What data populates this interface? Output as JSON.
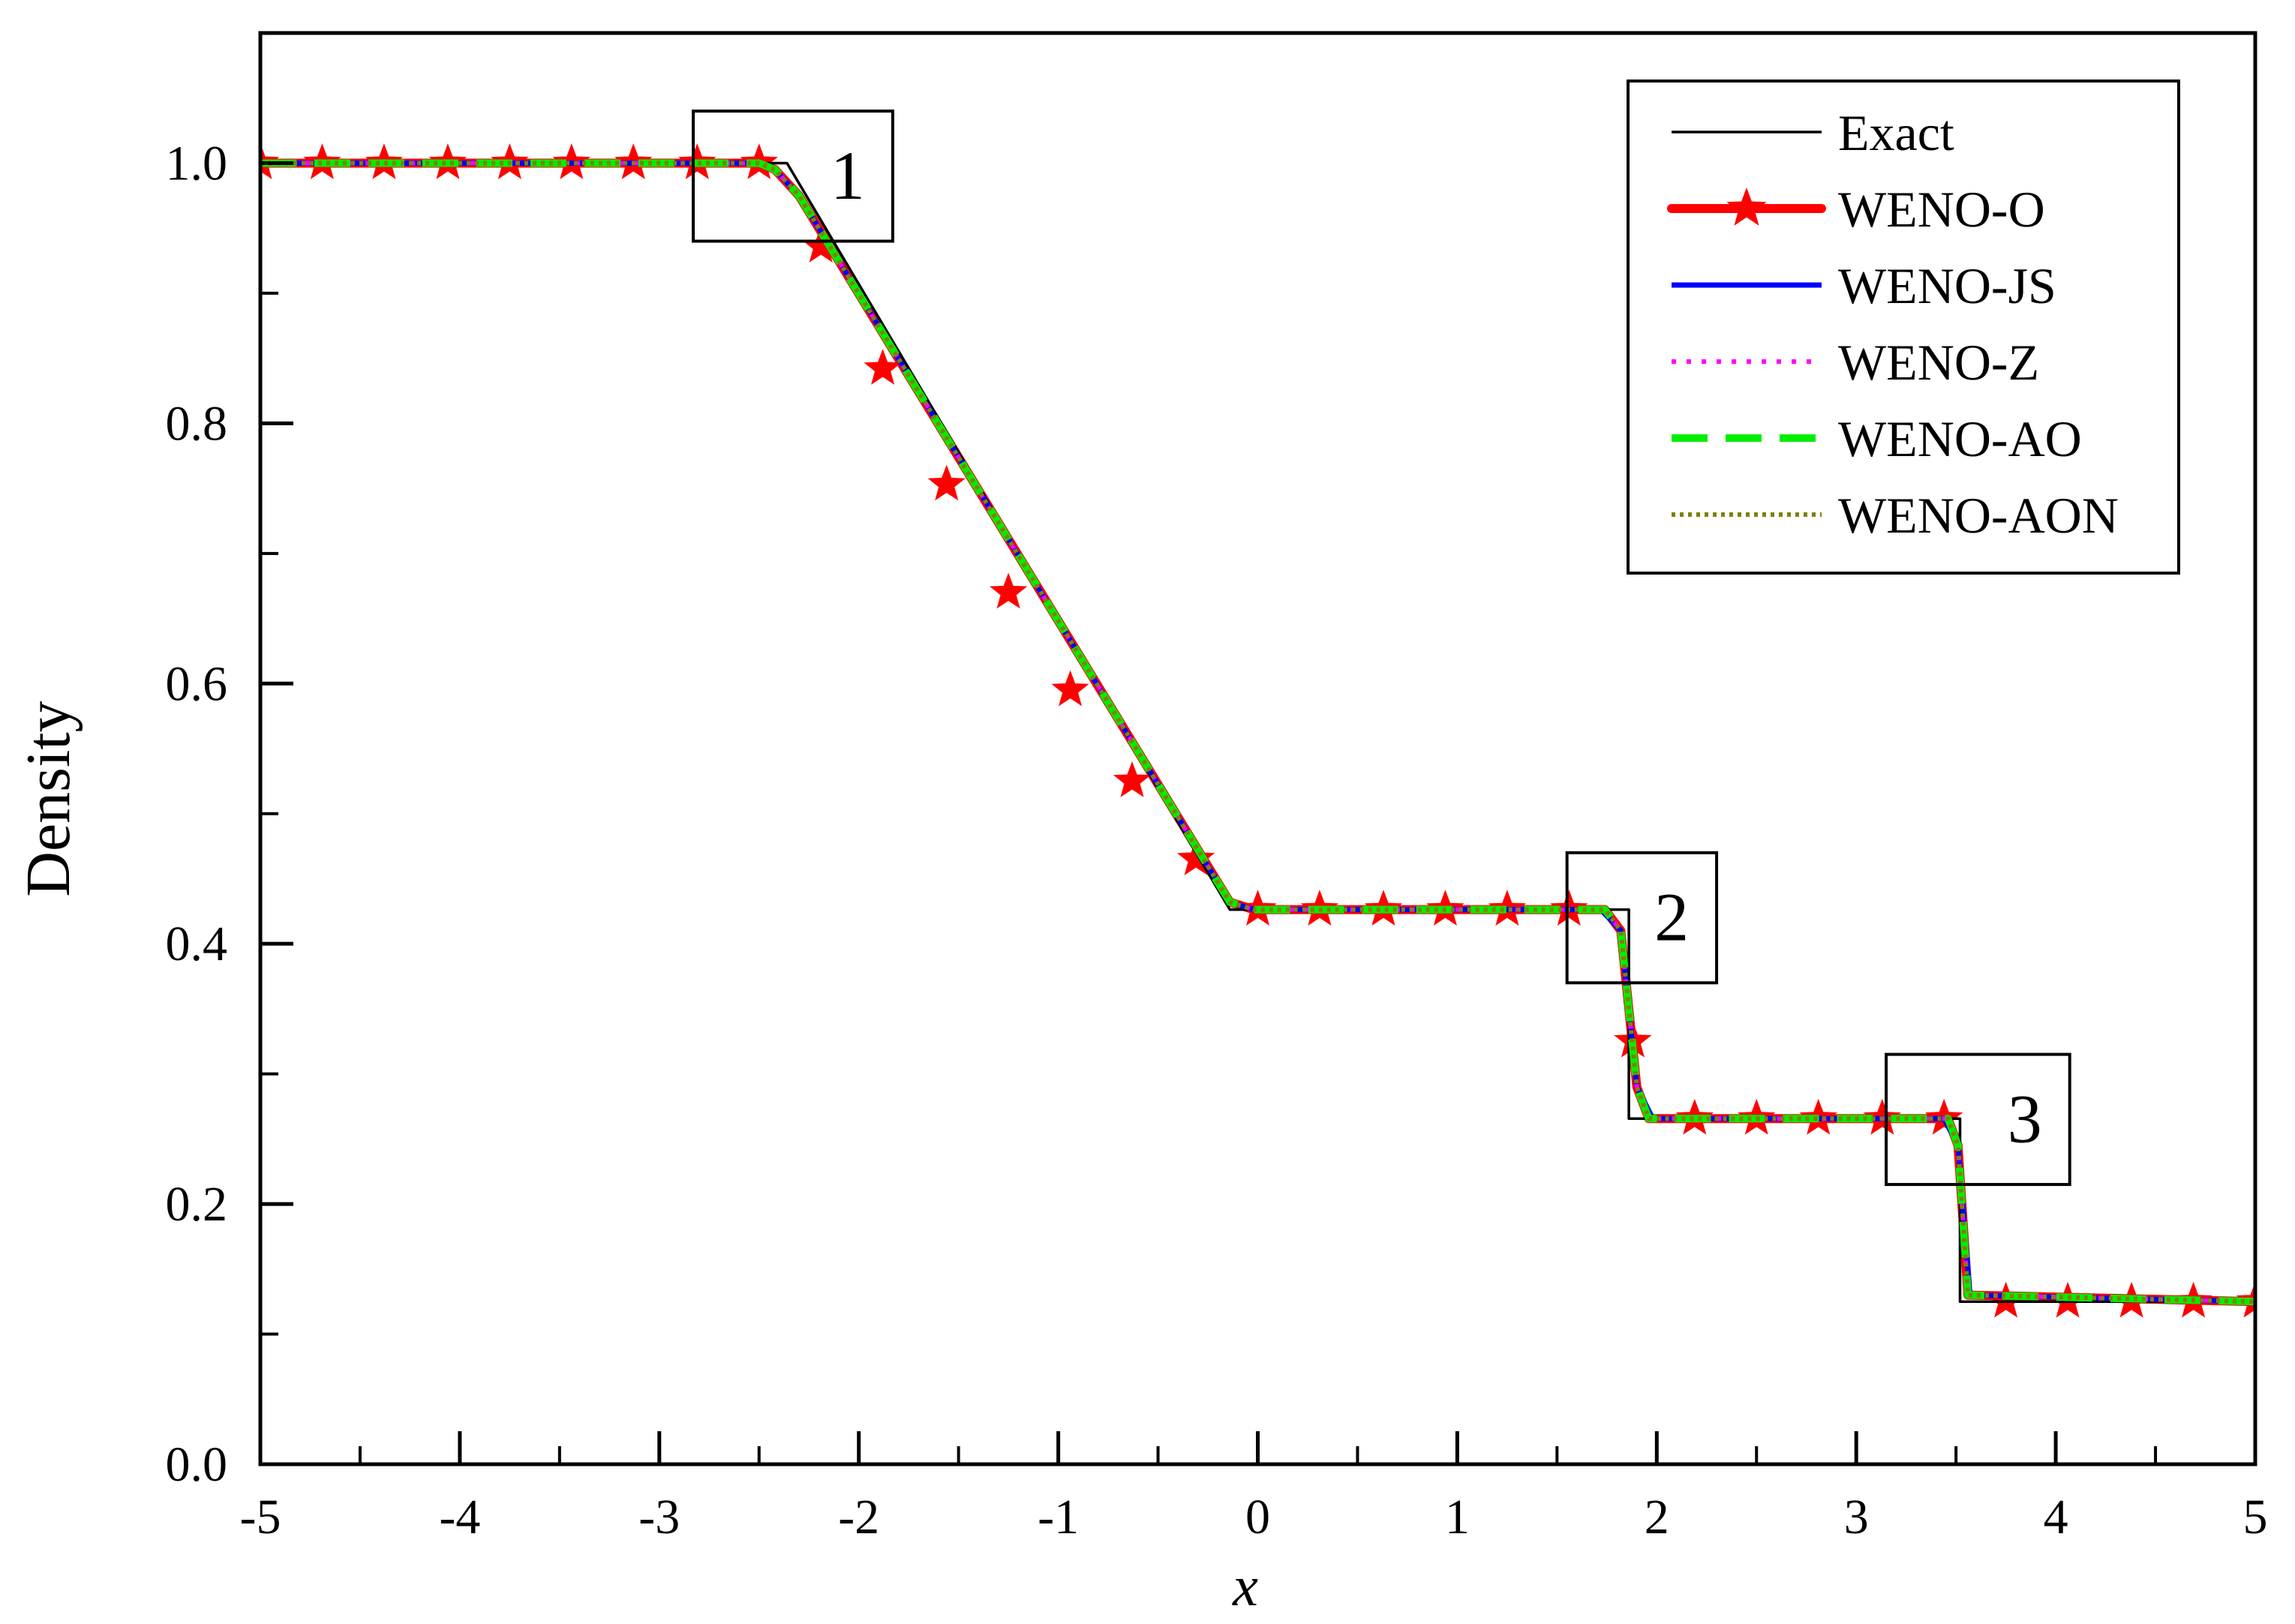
{
  "chart_data": {
    "type": "line",
    "xlabel": "x",
    "ylabel": "Density",
    "xlim": [
      -5,
      5
    ],
    "ylim": [
      0,
      1.1
    ],
    "xticks": [
      -5,
      -4,
      -3,
      -2,
      -1,
      0,
      1,
      2,
      3,
      4,
      5
    ],
    "xtick_labels": [
      "-5",
      "-4",
      "-3",
      "-2",
      "-1",
      "0",
      "1",
      "2",
      "3",
      "4",
      "5"
    ],
    "yticks": [
      0,
      0.2,
      0.4,
      0.6,
      0.8,
      1.0
    ],
    "ytick_labels": [
      "0.0",
      "0.2",
      "0.4",
      "0.6",
      "0.8",
      "1.0"
    ],
    "grid": false,
    "legend_position": "top-right",
    "series": [
      {
        "name": "Exact",
        "color": "#000000",
        "style": "solid-thin",
        "x": [
          -5,
          -2.36,
          -0.14,
          1.86,
          1.86,
          3.52,
          3.52,
          5
        ],
        "y": [
          1.0,
          1.0,
          0.4263,
          0.4263,
          0.2656,
          0.2656,
          0.125,
          0.125
        ]
      },
      {
        "name": "WENO-O",
        "color": "#ff0000",
        "style": "solid-thick-star",
        "x": [
          -5,
          -2.5,
          -2.42,
          -2.3,
          -0.14,
          -0.02,
          1.74,
          1.82,
          1.9,
          1.96,
          3.46,
          3.51,
          3.56,
          5
        ],
        "y": [
          1.0,
          1.0,
          0.995,
          0.975,
          0.432,
          0.4263,
          0.4263,
          0.41,
          0.29,
          0.2656,
          0.2656,
          0.245,
          0.13,
          0.125
        ],
        "markers_x": [
          -5,
          -4.69,
          -4.38,
          -4.06,
          -3.75,
          -3.44,
          -3.13,
          -2.81,
          -2.5,
          -2.19,
          -1.88,
          -1.56,
          -1.25,
          -0.94,
          -0.63,
          -0.31,
          0,
          0.31,
          0.63,
          0.94,
          1.25,
          1.56,
          1.88,
          2.19,
          2.5,
          2.81,
          3.13,
          3.44,
          3.75,
          4.06,
          4.38,
          4.69,
          5
        ],
        "markers_y": [
          1.0,
          1.0,
          1.0,
          1.0,
          1.0,
          1.0,
          1.0,
          1.0,
          1.0,
          0.936,
          0.842,
          0.753,
          0.67,
          0.595,
          0.525,
          0.465,
          0.4263,
          0.4263,
          0.4263,
          0.4263,
          0.4263,
          0.4263,
          0.325,
          0.2656,
          0.2656,
          0.2656,
          0.2656,
          0.2656,
          0.125,
          0.125,
          0.125,
          0.125,
          0.125
        ]
      },
      {
        "name": "WENO-JS",
        "color": "#0000ff",
        "style": "solid",
        "x": [
          -5,
          -2.5,
          -2.42,
          -2.3,
          -0.14,
          -0.02,
          1.72,
          1.82,
          1.9,
          1.98,
          3.44,
          3.51,
          3.57,
          5
        ],
        "y": [
          1.0,
          1.0,
          0.995,
          0.975,
          0.432,
          0.4263,
          0.4263,
          0.41,
          0.29,
          0.2656,
          0.2656,
          0.245,
          0.13,
          0.125
        ]
      },
      {
        "name": "WENO-Z",
        "color": "#ff00ff",
        "style": "dotted",
        "x": [
          -5,
          -2.5,
          -2.42,
          -2.3,
          -0.14,
          -0.02,
          1.74,
          1.82,
          1.9,
          1.96,
          3.46,
          3.51,
          3.56,
          5
        ],
        "y": [
          1.0,
          1.0,
          0.995,
          0.975,
          0.432,
          0.4263,
          0.4263,
          0.41,
          0.29,
          0.2656,
          0.2656,
          0.245,
          0.13,
          0.125
        ]
      },
      {
        "name": "WENO-AO",
        "color": "#00ee00",
        "style": "dashed",
        "x": [
          -5,
          -2.5,
          -2.42,
          -2.3,
          -0.14,
          -0.02,
          1.74,
          1.82,
          1.9,
          1.96,
          3.46,
          3.51,
          3.56,
          5
        ],
        "y": [
          1.0,
          1.0,
          0.995,
          0.975,
          0.432,
          0.4263,
          0.4263,
          0.41,
          0.29,
          0.2656,
          0.2656,
          0.245,
          0.13,
          0.125
        ]
      },
      {
        "name": "WENO-AON",
        "color": "#808000",
        "style": "dotted-short",
        "x": [
          -5,
          -2.5,
          -2.42,
          -2.3,
          -0.14,
          -0.02,
          1.74,
          1.82,
          1.9,
          1.96,
          3.46,
          3.51,
          3.56,
          5
        ],
        "y": [
          1.0,
          1.0,
          0.995,
          0.975,
          0.432,
          0.4263,
          0.4263,
          0.41,
          0.29,
          0.2656,
          0.2656,
          0.245,
          0.13,
          0.125
        ]
      }
    ],
    "annotations": [
      {
        "label": "1",
        "box_x": [
          -2.83,
          -1.83
        ],
        "box_y": [
          0.94,
          1.04
        ]
      },
      {
        "label": "2",
        "box_x": [
          1.55,
          2.3
        ],
        "box_y": [
          0.37,
          0.47
        ]
      },
      {
        "label": "3",
        "box_x": [
          3.15,
          4.07
        ],
        "box_y": [
          0.215,
          0.315
        ]
      }
    ]
  }
}
